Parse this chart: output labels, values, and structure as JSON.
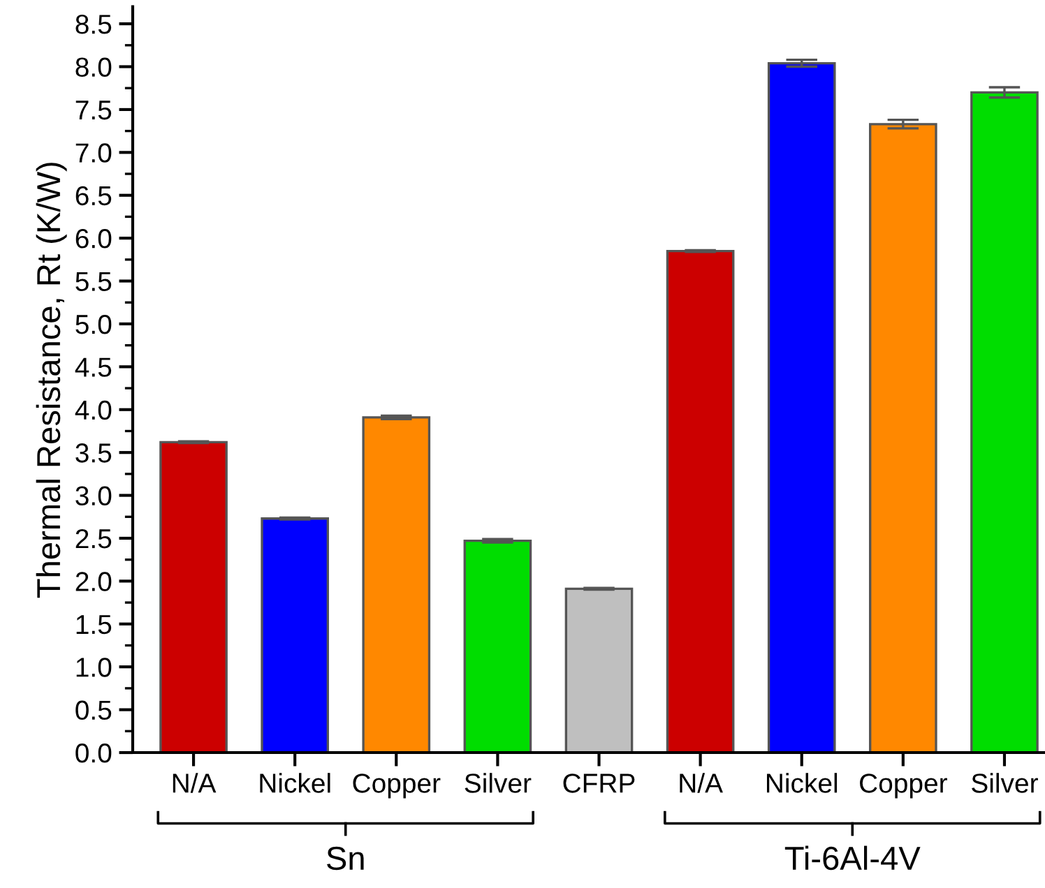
{
  "chart_data": {
    "type": "bar",
    "ylabel": "Thermal Resistance, Rt (K/W)",
    "categories": [
      "N/A",
      "Nickel",
      "Copper",
      "Silver",
      "CFRP",
      "N/A",
      "Nickel",
      "Copper",
      "Silver"
    ],
    "values": [
      3.62,
      2.73,
      3.91,
      2.47,
      1.91,
      5.85,
      8.04,
      7.33,
      7.7
    ],
    "errors": [
      0.01,
      0.01,
      0.02,
      0.02,
      0.01,
      0.01,
      0.04,
      0.05,
      0.06
    ],
    "colors": [
      "#cc0000",
      "#0000ff",
      "#ff8800",
      "#00dd00",
      "#bfbfbf",
      "#cc0000",
      "#0000ff",
      "#ff8800",
      "#00dd00"
    ],
    "ylim": [
      0,
      8.7
    ],
    "yticks": [
      {
        "value": 0,
        "label": "0.0"
      },
      0.5,
      {
        "value": 1,
        "label": "1.0"
      },
      1.5,
      {
        "value": 2,
        "label": "2.0"
      },
      2.5,
      {
        "value": 3,
        "label": "3.0"
      },
      3.5,
      {
        "value": 4,
        "label": "4.0"
      },
      4.5,
      {
        "value": 5,
        "label": "5.0"
      },
      5.5,
      {
        "value": 6,
        "label": "6.0"
      },
      6.5,
      {
        "value": 7,
        "label": "7.0"
      },
      7.5,
      {
        "value": 8,
        "label": "8.0"
      },
      8.5
    ],
    "annotations": [
      "Sn",
      "Ti-6Al-4V"
    ],
    "grid": false
  }
}
